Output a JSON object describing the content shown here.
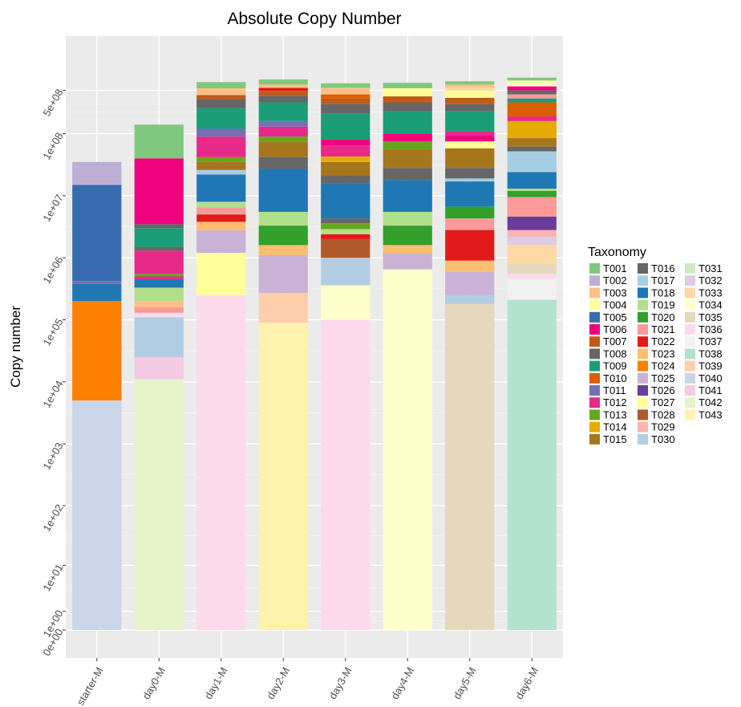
{
  "chart_data": {
    "type": "bar",
    "stacked": true,
    "title": "Absolute Copy Number",
    "xlabel": "",
    "ylabel": "Copy number",
    "y_scale": "pseudo-log (copy number + 1)",
    "y_ticks": [
      "0e+00",
      "1e+00",
      "1e+01",
      "1e+02",
      "1e+03",
      "1e+04",
      "1e+05",
      "1e+06",
      "1e+07",
      "1e+08",
      "5e+08"
    ],
    "grid": true,
    "legend_position": "right",
    "legend_title": "Taxonomy",
    "categories": [
      "starter-M",
      "day0-M",
      "day1-M",
      "day2-M",
      "day3-M",
      "day4-M",
      "day5-M",
      "day6-M"
    ],
    "taxa": [
      "T001",
      "T002",
      "T003",
      "T004",
      "T005",
      "T006",
      "T007",
      "T008",
      "T009",
      "T010",
      "T011",
      "T012",
      "T013",
      "T014",
      "T015",
      "T016",
      "T017",
      "T018",
      "T019",
      "T020",
      "T021",
      "T022",
      "T023",
      "T024",
      "T025",
      "T026",
      "T027",
      "T028",
      "T029",
      "T030",
      "T031",
      "T032",
      "T033",
      "T034",
      "T035",
      "T036",
      "T037",
      "T038",
      "T039",
      "T040",
      "T041",
      "T042",
      "T043"
    ],
    "colors": {
      "T001": "#7fc97f",
      "T002": "#beaed4",
      "T003": "#fdc086",
      "T004": "#ffff99",
      "T005": "#386cb0",
      "T006": "#f0027f",
      "T007": "#bf5b17",
      "T008": "#666666",
      "T009": "#1b9e77",
      "T010": "#d95f02",
      "T011": "#7570b3",
      "T012": "#e7298a",
      "T013": "#66a61e",
      "T014": "#e6ab02",
      "T015": "#a6761d",
      "T016": "#666666",
      "T017": "#a6cee3",
      "T018": "#1f78b4",
      "T019": "#b2df8a",
      "T020": "#33a02c",
      "T021": "#fb9a99",
      "T022": "#e31a1c",
      "T023": "#fdbf6f",
      "T024": "#ff7f00",
      "T025": "#cab2d6",
      "T026": "#6a3d9a",
      "T027": "#ffff99",
      "T028": "#b15928",
      "T029": "#fbb4ae",
      "T030": "#b3cde3",
      "T031": "#ccebc5",
      "T032": "#decbe4",
      "T033": "#fed9a6",
      "T034": "#ffffcc",
      "T035": "#e5d8bd",
      "T036": "#fddaec",
      "T037": "#f2f2f2",
      "T038": "#b3e2cd",
      "T039": "#fdcdac",
      "T040": "#cbd5e8",
      "T041": "#f4cae4",
      "T042": "#e6f5c9",
      "T043": "#fff2ae"
    },
    "stacks_bottom_to_top_cumulative_copy_number": {
      "starter-M": [
        [
          "T040",
          5000.0
        ],
        [
          "T024",
          200000.0
        ],
        [
          "T018",
          380000.0
        ],
        [
          "T011",
          420000.0
        ],
        [
          "T005",
          15000000.0
        ],
        [
          "T002",
          35000000.0
        ]
      ],
      "day0-M": [
        [
          "T042",
          11000.0
        ],
        [
          "T041",
          25000.0
        ],
        [
          "T030",
          110000.0
        ],
        [
          "T036",
          130000.0
        ],
        [
          "T021",
          160000.0
        ],
        [
          "T003",
          200000.0
        ],
        [
          "T019",
          330000.0
        ],
        [
          "T018",
          450000.0
        ],
        [
          "T012",
          500000.0
        ],
        [
          "T013",
          550000.0
        ],
        [
          "T012",
          1300000.0
        ],
        [
          "T008",
          1500000.0
        ],
        [
          "T009",
          3000000.0
        ],
        [
          "T008",
          3500000.0
        ],
        [
          "T006",
          40000000.0
        ],
        [
          "T001",
          140000000.0
        ]
      ],
      "day1-M": [
        [
          "T036",
          250000.0
        ],
        [
          "T027",
          1200000.0
        ],
        [
          "T025",
          2800000.0
        ],
        [
          "T023",
          3800000.0
        ],
        [
          "T022",
          5000000.0
        ],
        [
          "T021",
          6500000.0
        ],
        [
          "T019",
          8000000.0
        ],
        [
          "T018",
          22000000.0
        ],
        [
          "T017",
          26000000.0
        ],
        [
          "T015",
          35000000.0
        ],
        [
          "T013",
          42000000.0
        ],
        [
          "T012",
          90000000.0
        ],
        [
          "T011",
          120000000.0
        ],
        [
          "T009",
          260000000.0
        ],
        [
          "T008",
          360000000.0
        ],
        [
          "T007",
          420000000.0
        ],
        [
          "T003",
          540000000.0
        ],
        [
          "T001",
          680000000.0
        ]
      ],
      "day2-M": [
        [
          "T043",
          90000.0
        ],
        [
          "T039",
          270000.0
        ],
        [
          "T025",
          1100000.0
        ],
        [
          "T023",
          1600000.0
        ],
        [
          "T020",
          3300000.0
        ],
        [
          "T019",
          5500000.0
        ],
        [
          "T018",
          27000000.0
        ],
        [
          "T016",
          42000000.0
        ],
        [
          "T015",
          75000000.0
        ],
        [
          "T013",
          90000000.0
        ],
        [
          "T012",
          130000000.0
        ],
        [
          "T011",
          160000000.0
        ],
        [
          "T009",
          320000000.0
        ],
        [
          "T008",
          410000000.0
        ],
        [
          "T007",
          490000000.0
        ],
        [
          "T022",
          550000000.0
        ],
        [
          "T003",
          620000000.0
        ],
        [
          "T001",
          750000000.0
        ]
      ],
      "day3-M": [
        [
          "T036",
          100000.0
        ],
        [
          "T034",
          360000.0
        ],
        [
          "T030",
          1000000.0
        ],
        [
          "T028",
          2000000.0
        ],
        [
          "T022",
          2400000.0
        ],
        [
          "T019",
          2900000.0
        ],
        [
          "T013",
          3600000.0
        ],
        [
          "T016",
          4300000.0
        ],
        [
          "T018",
          16000000.0
        ],
        [
          "T008",
          21000000.0
        ],
        [
          "T015",
          35000000.0
        ],
        [
          "T014",
          43000000.0
        ],
        [
          "T012",
          65000000.0
        ],
        [
          "T006",
          80000000.0
        ],
        [
          "T009",
          210000000.0
        ],
        [
          "T008",
          300000000.0
        ],
        [
          "T007",
          370000000.0
        ],
        [
          "T010",
          430000000.0
        ],
        [
          "T003",
          550000000.0
        ],
        [
          "T001",
          650000000.0
        ]
      ],
      "day4-M": [
        [
          "T034",
          650000.0
        ],
        [
          "T025",
          1200000.0
        ],
        [
          "T023",
          1600000.0
        ],
        [
          "T020",
          3300000.0
        ],
        [
          "T019",
          5500000.0
        ],
        [
          "T018",
          18000000.0
        ],
        [
          "T016",
          28000000.0
        ],
        [
          "T015",
          56000000.0
        ],
        [
          "T013",
          75000000.0
        ],
        [
          "T006",
          100000000.0
        ],
        [
          "T009",
          230000000.0
        ],
        [
          "T008",
          320000000.0
        ],
        [
          "T007",
          400000000.0
        ],
        [
          "T004",
          480000000.0
        ],
        [
          "T027",
          540000000.0
        ],
        [
          "T001",
          660000000.0
        ]
      ],
      "day5-M": [
        [
          "T035",
          180000.0
        ],
        [
          "T030",
          250000.0
        ],
        [
          "T025",
          600000.0
        ],
        [
          "T023",
          900000.0
        ],
        [
          "T022",
          2800000.0
        ],
        [
          "T021",
          4300000.0
        ],
        [
          "T020",
          6700000.0
        ],
        [
          "T018",
          17000000.0
        ],
        [
          "T017",
          19000000.0
        ],
        [
          "T008",
          28000000.0
        ],
        [
          "T015",
          58000000.0
        ],
        [
          "T004",
          75000000.0
        ],
        [
          "T006",
          93000000.0
        ],
        [
          "T012",
          110000000.0
        ],
        [
          "T009",
          230000000.0
        ],
        [
          "T008",
          300000000.0
        ],
        [
          "T007",
          380000000.0
        ],
        [
          "T004",
          490000000.0
        ],
        [
          "T033",
          560000000.0
        ],
        [
          "T003",
          620000000.0
        ],
        [
          "T001",
          700000000.0
        ]
      ],
      "day6-M": [
        [
          "T038",
          210000.0
        ],
        [
          "T037",
          450000.0
        ],
        [
          "T036",
          550000.0
        ],
        [
          "T035",
          800000.0
        ],
        [
          "T033",
          1600000.0
        ],
        [
          "T032",
          2200000.0
        ],
        [
          "T029",
          2800000.0
        ],
        [
          "T026",
          4600000.0
        ],
        [
          "T021",
          9500000.0
        ],
        [
          "T020",
          12000000.0
        ],
        [
          "T019",
          13000000.0
        ],
        [
          "T018",
          24000000.0
        ],
        [
          "T017",
          52000000.0
        ],
        [
          "T016",
          62000000.0
        ],
        [
          "T015",
          85000000.0
        ],
        [
          "T014",
          160000000.0
        ],
        [
          "T012",
          190000000.0
        ],
        [
          "T010",
          320000000.0
        ],
        [
          "T009",
          370000000.0
        ],
        [
          "T021",
          430000000.0
        ],
        [
          "T008",
          500000000.0
        ],
        [
          "T006",
          580000000.0
        ],
        [
          "T034",
          660000000.0
        ],
        [
          "T004",
          720000000.0
        ],
        [
          "T001",
          800000000.0
        ]
      ]
    }
  }
}
